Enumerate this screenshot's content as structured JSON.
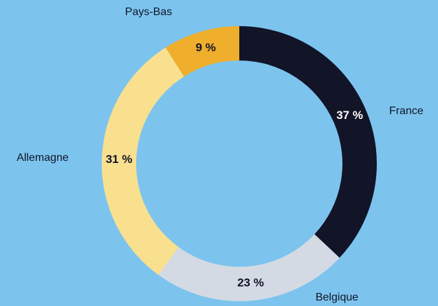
{
  "chart_data": {
    "type": "donut",
    "categories": [
      "France",
      "Belgique",
      "Allemagne",
      "Pays-Bas"
    ],
    "values": [
      37,
      23,
      31,
      9
    ],
    "value_labels": [
      "37 %",
      "23 %",
      "31 %",
      "9 %"
    ],
    "colors": [
      "#121428",
      "#d4dae4",
      "#f9e08f",
      "#efaf2c"
    ]
  }
}
